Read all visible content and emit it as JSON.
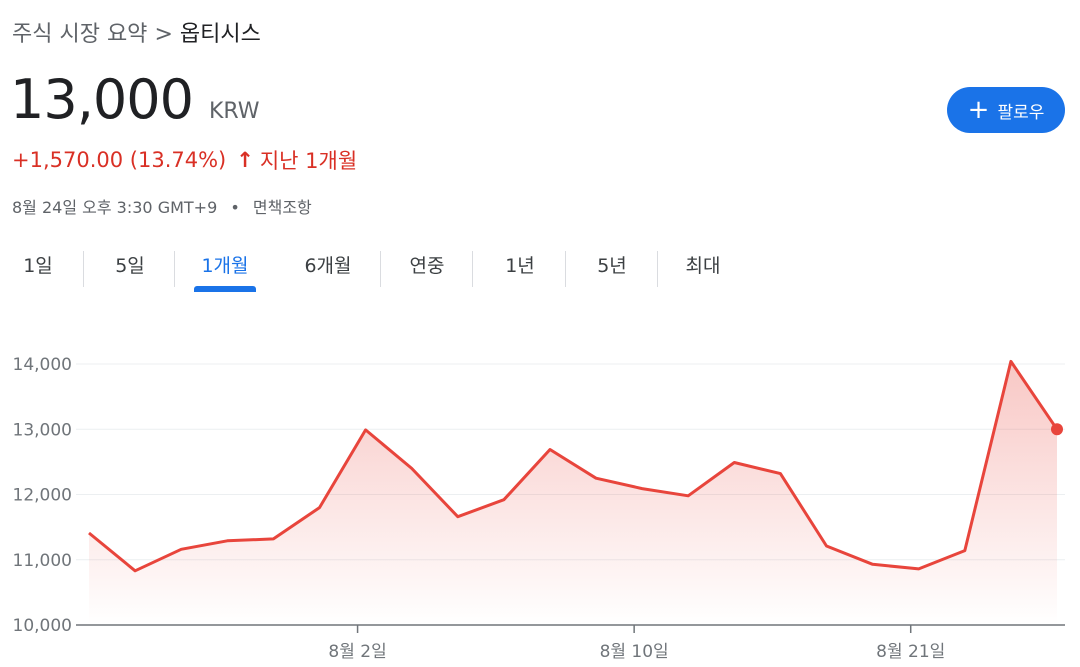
{
  "breadcrumb": {
    "parent": "주식 시장 요약",
    "separator": ">",
    "current": "옵티시스"
  },
  "quote": {
    "price": "13,000",
    "currency": "KRW",
    "change": "+1,570.00 (13.74%)",
    "change_arrow": "↑",
    "period": "지난 1개월",
    "timestamp": "8월 24일 오후 3:30 GMT+9",
    "dot": "•",
    "disclaimer": "면책조항"
  },
  "follow": {
    "plus": "+",
    "label": "팔로우"
  },
  "tabs": [
    {
      "label": "1일",
      "active": false
    },
    {
      "label": "5일",
      "active": false
    },
    {
      "label": "1개월",
      "active": true
    },
    {
      "label": "6개월",
      "active": false
    },
    {
      "label": "연중",
      "active": false
    },
    {
      "label": "1년",
      "active": false
    },
    {
      "label": "5년",
      "active": false
    },
    {
      "label": "최대",
      "active": false
    }
  ],
  "colors": {
    "line": "#e8453c",
    "accent": "#1a73e8",
    "down_text": "#d93025"
  },
  "chart_data": {
    "type": "area",
    "title": "",
    "xlabel": "",
    "ylabel": "",
    "ylim": [
      10000,
      14000
    ],
    "y_ticks": [
      "14,000",
      "13,000",
      "12,000",
      "11,000",
      "10,000"
    ],
    "x_ticks": [
      {
        "label": "8월 2일",
        "index": 6
      },
      {
        "label": "8월 10일",
        "index": 12
      },
      {
        "label": "8월 21일",
        "index": 18
      }
    ],
    "grid": true,
    "series": [
      {
        "values": [
          11410,
          10830,
          11160,
          11290,
          11320,
          11800,
          12990,
          12400,
          11660,
          11920,
          12690,
          12250,
          12090,
          11980,
          12490,
          12320,
          11210,
          10930,
          10860,
          11140,
          14040,
          13000
        ]
      }
    ]
  }
}
